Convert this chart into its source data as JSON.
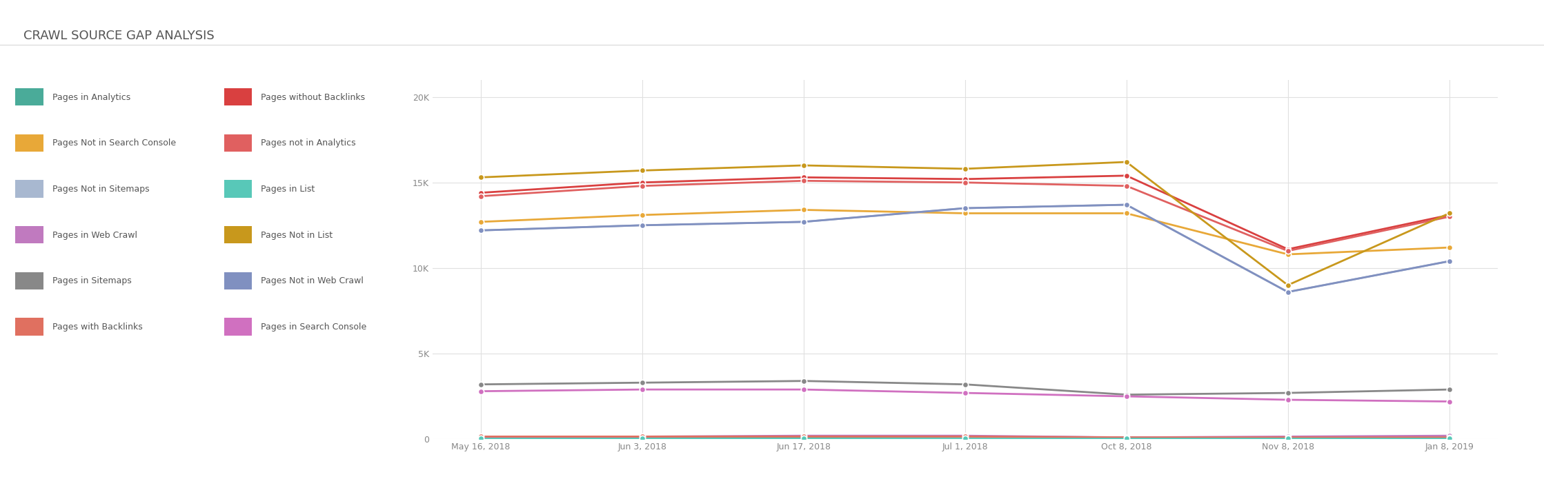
{
  "title": "CRAWL SOURCE GAP ANALYSIS",
  "x_labels": [
    "May 16, 2018",
    "Jun 3, 2018",
    "Jun 17, 2018",
    "Jul 1, 2018",
    "Oct 8, 2018",
    "Nov 8, 2018",
    "Jan 8, 2019"
  ],
  "x_positions": [
    0,
    1,
    2,
    3,
    4,
    5,
    6
  ],
  "ylim": [
    0,
    21000
  ],
  "yticks": [
    0,
    5000,
    10000,
    15000,
    20000
  ],
  "ytick_labels": [
    "0",
    "5K",
    "10K",
    "15K",
    "20K"
  ],
  "series": [
    {
      "label": "Pages in Analytics",
      "color": "#4aab99",
      "linewidth": 2,
      "values": [
        100,
        100,
        100,
        150,
        100,
        100,
        100
      ]
    },
    {
      "label": "Pages Not in Search Console",
      "color": "#e8a838",
      "linewidth": 2,
      "values": [
        12700,
        13100,
        13400,
        13200,
        13200,
        10800,
        11200
      ]
    },
    {
      "label": "Pages Not in Sitemaps",
      "color": "#a8b8d0",
      "linewidth": 2,
      "values": [
        12200,
        12500,
        12700,
        13500,
        13700,
        8600,
        10400
      ]
    },
    {
      "label": "Pages in Web Crawl",
      "color": "#c07abf",
      "linewidth": 2,
      "values": [
        100,
        150,
        200,
        200,
        100,
        150,
        200
      ]
    },
    {
      "label": "Pages in Sitemaps",
      "color": "#888888",
      "linewidth": 2,
      "values": [
        3200,
        3300,
        3400,
        3200,
        2600,
        2700,
        2900
      ]
    },
    {
      "label": "Pages with Backlinks",
      "color": "#e07060",
      "linewidth": 2,
      "values": [
        150,
        150,
        150,
        150,
        100,
        100,
        100
      ]
    },
    {
      "label": "Pages without Backlinks",
      "color": "#d94040",
      "linewidth": 2,
      "values": [
        14400,
        15000,
        15300,
        15200,
        15400,
        11100,
        13100
      ]
    },
    {
      "label": "Pages not in Analytics",
      "color": "#e06060",
      "linewidth": 2,
      "values": [
        14200,
        14800,
        15100,
        15000,
        14800,
        11000,
        13000
      ]
    },
    {
      "label": "Pages in List",
      "color": "#58c8b8",
      "linewidth": 2,
      "values": [
        50,
        50,
        50,
        50,
        50,
        50,
        50
      ]
    },
    {
      "label": "Pages Not in List",
      "color": "#c8981c",
      "linewidth": 2,
      "values": [
        15300,
        15700,
        16000,
        15800,
        16200,
        9000,
        13200
      ]
    },
    {
      "label": "Pages Not in Web Crawl",
      "color": "#8090c0",
      "linewidth": 2,
      "values": [
        12200,
        12500,
        12700,
        13500,
        13700,
        8600,
        10400
      ]
    },
    {
      "label": "Pages in Search Console",
      "color": "#d070c0",
      "linewidth": 2,
      "values": [
        2800,
        2900,
        2900,
        2700,
        2500,
        2300,
        2200
      ]
    }
  ],
  "legend_col1": [
    {
      "label": "Pages in Analytics",
      "color": "#4aab99"
    },
    {
      "label": "Pages Not in Search Console",
      "color": "#e8a838"
    },
    {
      "label": "Pages Not in Sitemaps",
      "color": "#a8b8d0"
    },
    {
      "label": "Pages in Web Crawl",
      "color": "#c07abf"
    },
    {
      "label": "Pages in Sitemaps",
      "color": "#888888"
    },
    {
      "label": "Pages with Backlinks",
      "color": "#e07060"
    }
  ],
  "legend_col2": [
    {
      "label": "Pages without Backlinks",
      "color": "#d94040"
    },
    {
      "label": "Pages not in Analytics",
      "color": "#e06060"
    },
    {
      "label": "Pages in List",
      "color": "#58c8b8"
    },
    {
      "label": "Pages Not in List",
      "color": "#c8981c"
    },
    {
      "label": "Pages Not in Web Crawl",
      "color": "#8090c0"
    },
    {
      "label": "Pages in Search Console",
      "color": "#d070c0"
    }
  ],
  "grid_color": "#e0e0e0",
  "title_fontsize": 13,
  "axis_fontsize": 9,
  "legend_fontsize": 9
}
